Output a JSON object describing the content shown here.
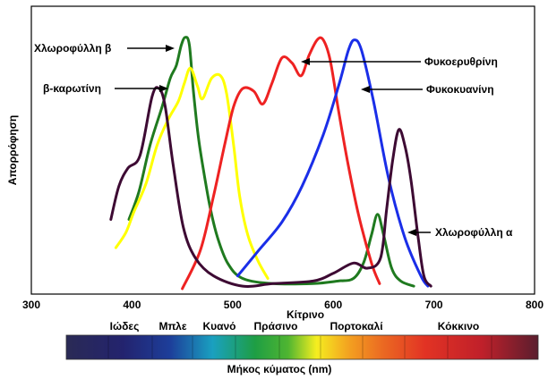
{
  "chart_data": {
    "type": "line",
    "title": "",
    "ylabel": "Απορρόφηση",
    "xlabel": "Μήκος κύματος (nm)",
    "xlim": [
      300,
      800
    ],
    "ylim": [
      0,
      1
    ],
    "x_ticks": [
      300,
      400,
      500,
      600,
      700,
      800
    ],
    "grid": false,
    "spectrum_bands": [
      "Ιώδες",
      "Μπλε",
      "Κυανό",
      "Πράσινο",
      "Κίτρινο",
      "Πορτοκαλί",
      "Κόκκινο"
    ],
    "series": [
      {
        "name": "Χλωροφύλλη β",
        "color": "#1f7a1f",
        "points": [
          [
            397,
            0.27
          ],
          [
            407,
            0.38
          ],
          [
            418,
            0.56
          ],
          [
            430,
            0.71
          ],
          [
            438,
            0.82
          ],
          [
            444,
            0.87
          ],
          [
            449,
            0.95
          ],
          [
            453,
            0.98
          ],
          [
            457,
            0.95
          ],
          [
            461,
            0.77
          ],
          [
            466,
            0.59
          ],
          [
            472,
            0.44
          ],
          [
            478,
            0.31
          ],
          [
            485,
            0.2
          ],
          [
            495,
            0.1
          ],
          [
            510,
            0.04
          ],
          [
            540,
            0.02
          ],
          [
            580,
            0.02
          ],
          [
            605,
            0.03
          ],
          [
            620,
            0.04
          ],
          [
            630,
            0.1
          ],
          [
            638,
            0.21
          ],
          [
            644,
            0.29
          ],
          [
            650,
            0.21
          ],
          [
            658,
            0.08
          ],
          [
            667,
            0.03
          ],
          [
            680,
            0.01
          ]
        ]
      },
      {
        "name": "β-καρωτίνη",
        "color": "#ffff00",
        "points": [
          [
            384,
            0.16
          ],
          [
            394,
            0.22
          ],
          [
            402,
            0.3
          ],
          [
            414,
            0.41
          ],
          [
            425,
            0.56
          ],
          [
            436,
            0.66
          ],
          [
            446,
            0.73
          ],
          [
            452,
            0.8
          ],
          [
            458,
            0.86
          ],
          [
            465,
            0.79
          ],
          [
            470,
            0.74
          ],
          [
            479,
            0.82
          ],
          [
            488,
            0.83
          ],
          [
            494,
            0.76
          ],
          [
            501,
            0.56
          ],
          [
            507,
            0.36
          ],
          [
            515,
            0.21
          ],
          [
            525,
            0.11
          ],
          [
            535,
            0.04
          ]
        ]
      },
      {
        "name": "Φυκοερυθρίνη",
        "color": "#ee2222",
        "points": [
          [
            450,
            0.0
          ],
          [
            468,
            0.15
          ],
          [
            481,
            0.36
          ],
          [
            492,
            0.56
          ],
          [
            501,
            0.71
          ],
          [
            510,
            0.78
          ],
          [
            521,
            0.77
          ],
          [
            530,
            0.72
          ],
          [
            539,
            0.8
          ],
          [
            549,
            0.9
          ],
          [
            559,
            0.88
          ],
          [
            568,
            0.83
          ],
          [
            576,
            0.91
          ],
          [
            584,
            0.97
          ],
          [
            590,
            0.97
          ],
          [
            597,
            0.89
          ],
          [
            605,
            0.7
          ],
          [
            614,
            0.5
          ],
          [
            625,
            0.29
          ],
          [
            638,
            0.1
          ],
          [
            646,
            0.02
          ]
        ]
      },
      {
        "name": "Φυκοκυανίνη",
        "color": "#1a2ee8",
        "points": [
          [
            505,
            0.05
          ],
          [
            526,
            0.15
          ],
          [
            549,
            0.26
          ],
          [
            569,
            0.4
          ],
          [
            590,
            0.6
          ],
          [
            606,
            0.8
          ],
          [
            615,
            0.93
          ],
          [
            621,
            0.97
          ],
          [
            628,
            0.93
          ],
          [
            640,
            0.73
          ],
          [
            655,
            0.43
          ],
          [
            671,
            0.2
          ],
          [
            687,
            0.05
          ],
          [
            694,
            0.01
          ]
        ]
      },
      {
        "name": "Χλωροφύλλη α",
        "color": "#3d0a33",
        "points": [
          [
            379,
            0.27
          ],
          [
            387,
            0.4
          ],
          [
            396,
            0.47
          ],
          [
            408,
            0.52
          ],
          [
            420,
            0.75
          ],
          [
            427,
            0.78
          ],
          [
            433,
            0.71
          ],
          [
            441,
            0.48
          ],
          [
            451,
            0.24
          ],
          [
            463,
            0.12
          ],
          [
            481,
            0.05
          ],
          [
            510,
            0.01
          ],
          [
            540,
            0.02
          ],
          [
            580,
            0.03
          ],
          [
            600,
            0.06
          ],
          [
            620,
            0.1
          ],
          [
            634,
            0.08
          ],
          [
            647,
            0.12
          ],
          [
            653,
            0.31
          ],
          [
            659,
            0.5
          ],
          [
            665,
            0.62
          ],
          [
            671,
            0.56
          ],
          [
            677,
            0.43
          ],
          [
            684,
            0.21
          ],
          [
            690,
            0.05
          ],
          [
            697,
            0.01
          ]
        ]
      }
    ],
    "annotations": [
      {
        "text": "Χλωροφύλλη β",
        "series": "Χλωροφύλλη β",
        "side": "left"
      },
      {
        "text": "β-καρωτίνη",
        "series": "β-καρωτίνη",
        "side": "left"
      },
      {
        "text": "Φυκοερυθρίνη",
        "series": "Φυκοερυθρίνη",
        "side": "right"
      },
      {
        "text": "Φυκοκυανίνη",
        "series": "Φυκοκυανίνη",
        "side": "right"
      },
      {
        "text": "Χλωροφύλλη α",
        "series": "Χλωροφύλλη α",
        "side": "right"
      }
    ]
  }
}
